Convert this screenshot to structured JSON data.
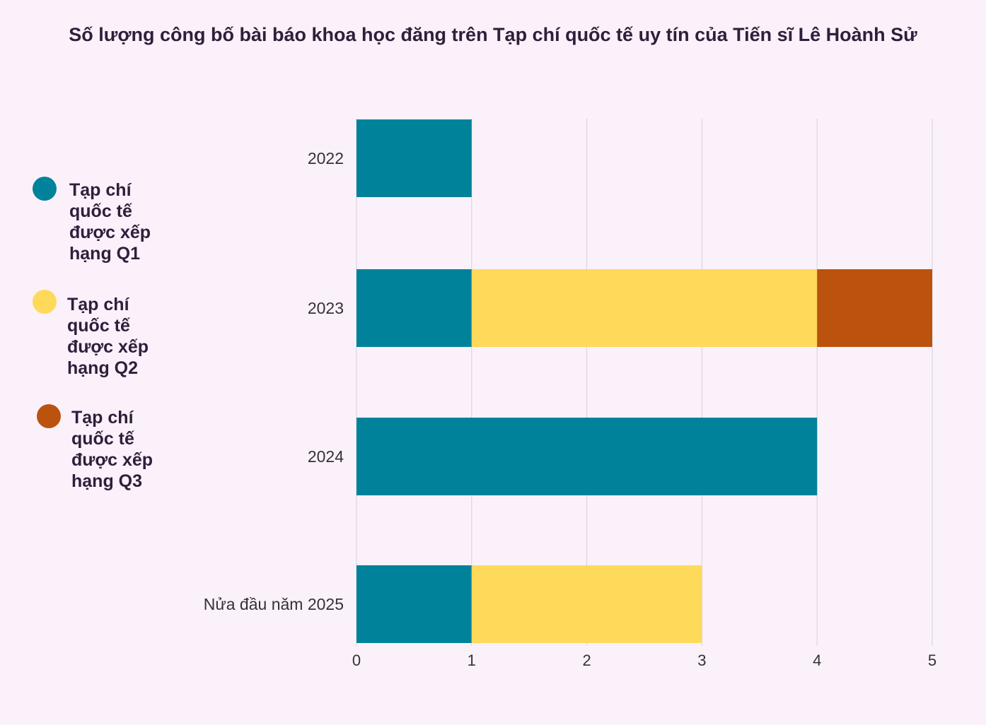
{
  "chart_data": {
    "type": "bar",
    "orientation": "horizontal",
    "stacked": true,
    "title": "Số lượng công bố bài báo khoa học đăng trên Tạp chí quốc tế uy tín của Tiến sĩ Lê Hoành Sử",
    "categories": [
      "2022",
      "2023",
      "2024",
      "Nửa đầu năm 2025"
    ],
    "series": [
      {
        "name": "Tạp chí quốc tế được xếp hạng Q1",
        "color": "#00839a",
        "values": [
          1,
          1,
          4,
          1
        ]
      },
      {
        "name": "Tạp chí quốc tế được xếp hạng Q2",
        "color": "#ffd95a",
        "values": [
          0,
          3,
          0,
          2
        ]
      },
      {
        "name": "Tạp chí quốc tế được xếp hạng Q3",
        "color": "#bb530f",
        "values": [
          0,
          1,
          0,
          0
        ]
      }
    ],
    "xlim": [
      0,
      5
    ],
    "xticks": [
      "0",
      "1",
      "2",
      "3",
      "4",
      "5"
    ],
    "grid": true,
    "legend_position": "left"
  }
}
